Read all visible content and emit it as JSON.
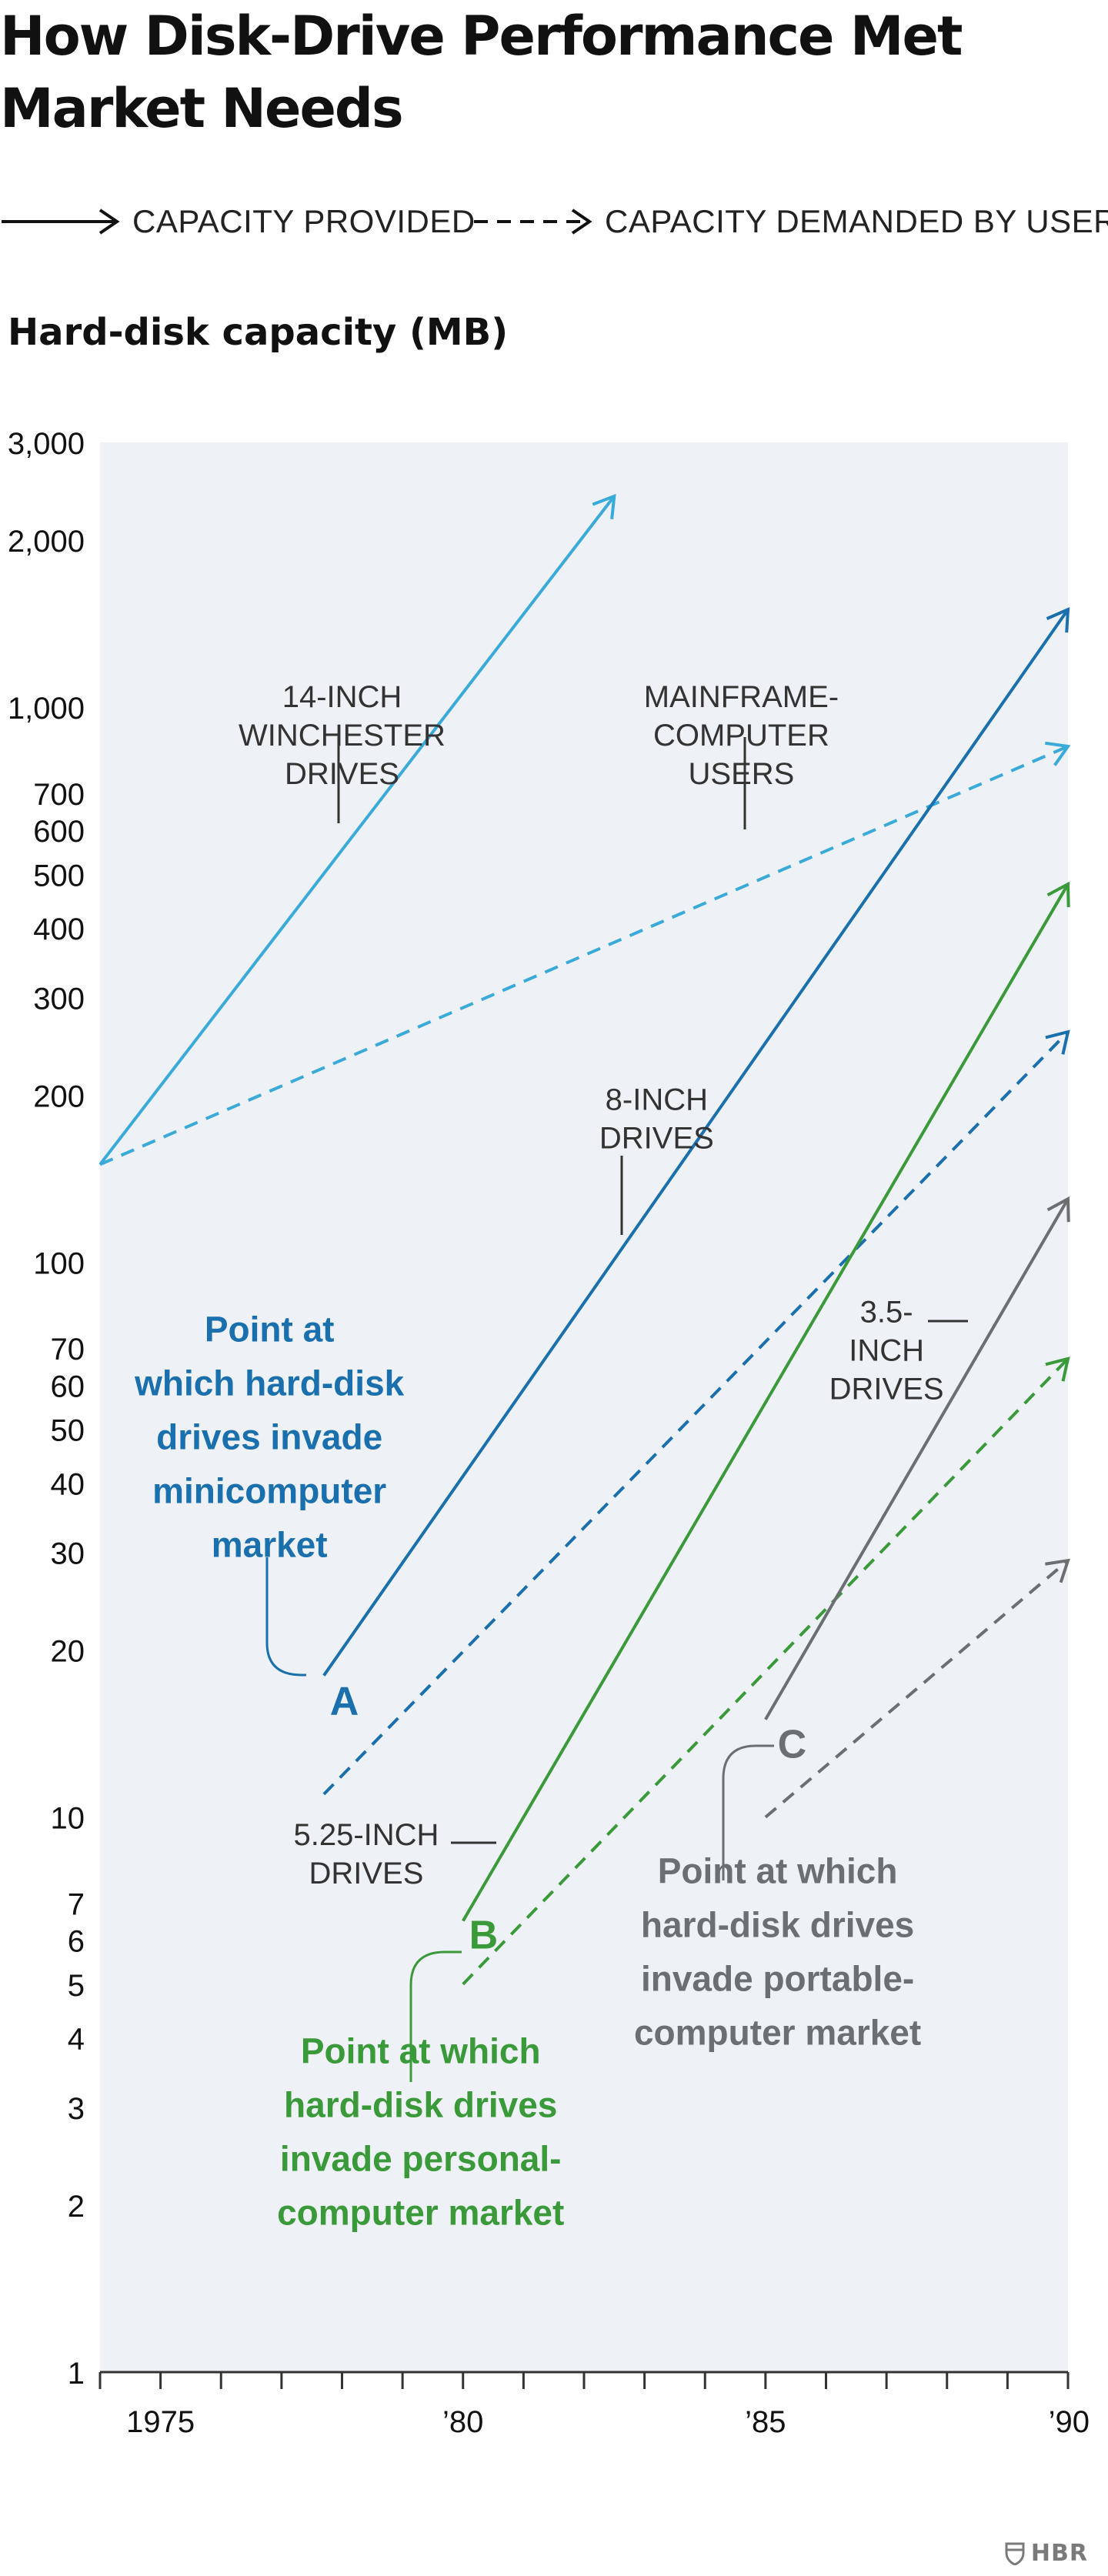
{
  "title": "How Disk-Drive Performance Met Market Needs",
  "legend": {
    "provided_label": "CAPACITY PROVIDED",
    "demanded_label": "CAPACITY DEMANDED BY USERS"
  },
  "brand": "HBR",
  "colors": {
    "plot_background": "#eef1f5",
    "fourteen_inch": "#3aabd9",
    "eight_inch": "#1a6fad",
    "five_inch": "#3a9a3a",
    "three_inch": "#6b6f72",
    "axis": "#333333"
  },
  "chart_data": {
    "type": "line",
    "ylabel": "Hard-disk capacity (MB)",
    "yscale": "log",
    "ylim": [
      1,
      3000
    ],
    "xlim": [
      1974,
      1990
    ],
    "ytick_values": [
      1,
      2,
      3,
      4,
      5,
      6,
      7,
      10,
      20,
      30,
      40,
      50,
      60,
      70,
      100,
      200,
      300,
      400,
      500,
      600,
      700,
      1000,
      2000,
      3000
    ],
    "ytick_labels": [
      "1",
      "2",
      "3",
      "4",
      "5",
      "6",
      "7",
      "10",
      "20",
      "30",
      "40",
      "50",
      "60",
      "70",
      "100",
      "200",
      "300",
      "400",
      "500",
      "600",
      "700",
      "1,000",
      "2,000",
      "3,000"
    ],
    "xtick_values": [
      1975,
      1980,
      1985,
      1990
    ],
    "xtick_labels": [
      "1975",
      "’80",
      "’85",
      "’90"
    ],
    "series": [
      {
        "key": "14_provided",
        "kind": "provided",
        "color_key": "fourteen_inch",
        "x": [
          1974,
          1982.5
        ],
        "y": [
          150,
          2400
        ]
      },
      {
        "key": "14_demanded",
        "kind": "demanded",
        "color_key": "fourteen_inch",
        "x": [
          1974,
          1990
        ],
        "y": [
          150,
          850
        ]
      },
      {
        "key": "8_provided",
        "kind": "provided",
        "color_key": "eight_inch",
        "x": [
          1977.7,
          1990
        ],
        "y": [
          18,
          1500
        ]
      },
      {
        "key": "8_demanded",
        "kind": "demanded",
        "color_key": "eight_inch",
        "x": [
          1977.7,
          1990
        ],
        "y": [
          11,
          260
        ]
      },
      {
        "key": "5_provided",
        "kind": "provided",
        "color_key": "five_inch",
        "x": [
          1980,
          1990
        ],
        "y": [
          6.5,
          480
        ]
      },
      {
        "key": "5_demanded",
        "kind": "demanded",
        "color_key": "five_inch",
        "x": [
          1980,
          1990
        ],
        "y": [
          5,
          67
        ]
      },
      {
        "key": "3_provided",
        "kind": "provided",
        "color_key": "three_inch",
        "x": [
          1985,
          1990
        ],
        "y": [
          15,
          130
        ]
      },
      {
        "key": "3_demanded",
        "kind": "demanded",
        "color_key": "three_inch",
        "x": [
          1985,
          1990
        ],
        "y": [
          10,
          29
        ]
      }
    ],
    "annotations": [
      {
        "key": "l14",
        "lines": [
          "14-INCH",
          "WINCHESTER",
          "DRIVES"
        ],
        "color_key": "axis",
        "x": 1978.0,
        "y": 1000
      },
      {
        "key": "lmf",
        "lines": [
          "MAINFRAME-",
          "COMPUTER",
          "USERS"
        ],
        "color_key": "axis",
        "x": 1984.6,
        "y": 1000
      },
      {
        "key": "l8",
        "lines": [
          "8-INCH",
          "DRIVES"
        ],
        "color_key": "axis",
        "x": 1983.2,
        "y": 188
      },
      {
        "key": "l35",
        "lines": [
          "3.5-",
          "INCH",
          "DRIVES"
        ],
        "color_key": "axis",
        "x": 1987.0,
        "y": 78
      },
      {
        "key": "l525",
        "lines": [
          "5.25-INCH",
          "DRIVES"
        ],
        "color_key": "axis",
        "x": 1978.4,
        "y": 8.9
      },
      {
        "key": "pa_text",
        "lines": [
          "Point at",
          "which hard-disk",
          "drives invade",
          "minicomputer",
          "market"
        ],
        "color_key": "eight_inch",
        "x": 1976.8,
        "y": 72
      },
      {
        "key": "pb_text",
        "lines": [
          "Point at which",
          "hard-disk drives",
          "invade personal-",
          "computer market"
        ],
        "color_key": "five_inch",
        "x": 1979.3,
        "y": 3.6
      },
      {
        "key": "pc_text",
        "lines": [
          "Point at which",
          "hard-disk drives",
          "invade portable-",
          "computer market"
        ],
        "color_key": "three_inch",
        "x": 1985.2,
        "y": 7.6
      },
      {
        "key": "letter_a",
        "lines": [
          "A"
        ],
        "color_key": "eight_inch",
        "x": 1977.8,
        "y": 15.3
      },
      {
        "key": "letter_b",
        "lines": [
          "B"
        ],
        "color_key": "five_inch",
        "x": 1980.1,
        "y": 5.8
      },
      {
        "key": "letter_c",
        "lines": [
          "C"
        ],
        "color_key": "three_inch",
        "x": 1985.2,
        "y": 12.8
      }
    ]
  }
}
